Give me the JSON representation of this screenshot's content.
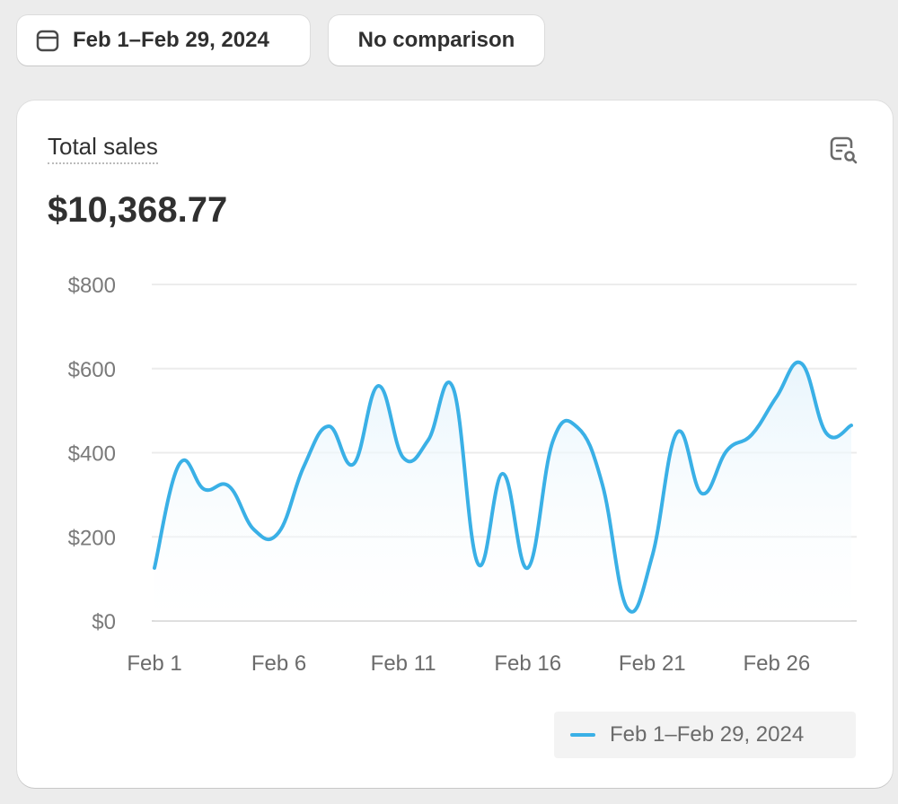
{
  "toolbar": {
    "date_range": "Feb 1–Feb 29, 2024",
    "comparison": "No comparison"
  },
  "card": {
    "title": "Total sales",
    "total": "$10,368.77"
  },
  "chart_data": {
    "type": "line",
    "title": "Total sales",
    "x": [
      "Feb 1",
      "Feb 2",
      "Feb 3",
      "Feb 4",
      "Feb 5",
      "Feb 6",
      "Feb 7",
      "Feb 8",
      "Feb 9",
      "Feb 10",
      "Feb 11",
      "Feb 12",
      "Feb 13",
      "Feb 14",
      "Feb 15",
      "Feb 16",
      "Feb 17",
      "Feb 18",
      "Feb 19",
      "Feb 20",
      "Feb 21",
      "Feb 22",
      "Feb 23",
      "Feb 24",
      "Feb 25",
      "Feb 26",
      "Feb 27",
      "Feb 28",
      "Feb 29"
    ],
    "series": [
      {
        "name": "Feb 1–Feb 29, 2024",
        "color": "#3ab0e6",
        "values": [
          126,
          373,
          313,
          320,
          217,
          211,
          367,
          463,
          373,
          559,
          388,
          430,
          554,
          136,
          350,
          126,
          426,
          460,
          324,
          30,
          154,
          448,
          303,
          405,
          443,
          533,
          612,
          446,
          465
        ]
      }
    ],
    "xticks": [
      "Feb 1",
      "Feb 6",
      "Feb 11",
      "Feb 16",
      "Feb 21",
      "Feb 26"
    ],
    "yticks": [
      "$0",
      "$200",
      "$400",
      "$600",
      "$800"
    ],
    "ylim": [
      0,
      800
    ],
    "grid": true,
    "legend": "bottom-right"
  }
}
